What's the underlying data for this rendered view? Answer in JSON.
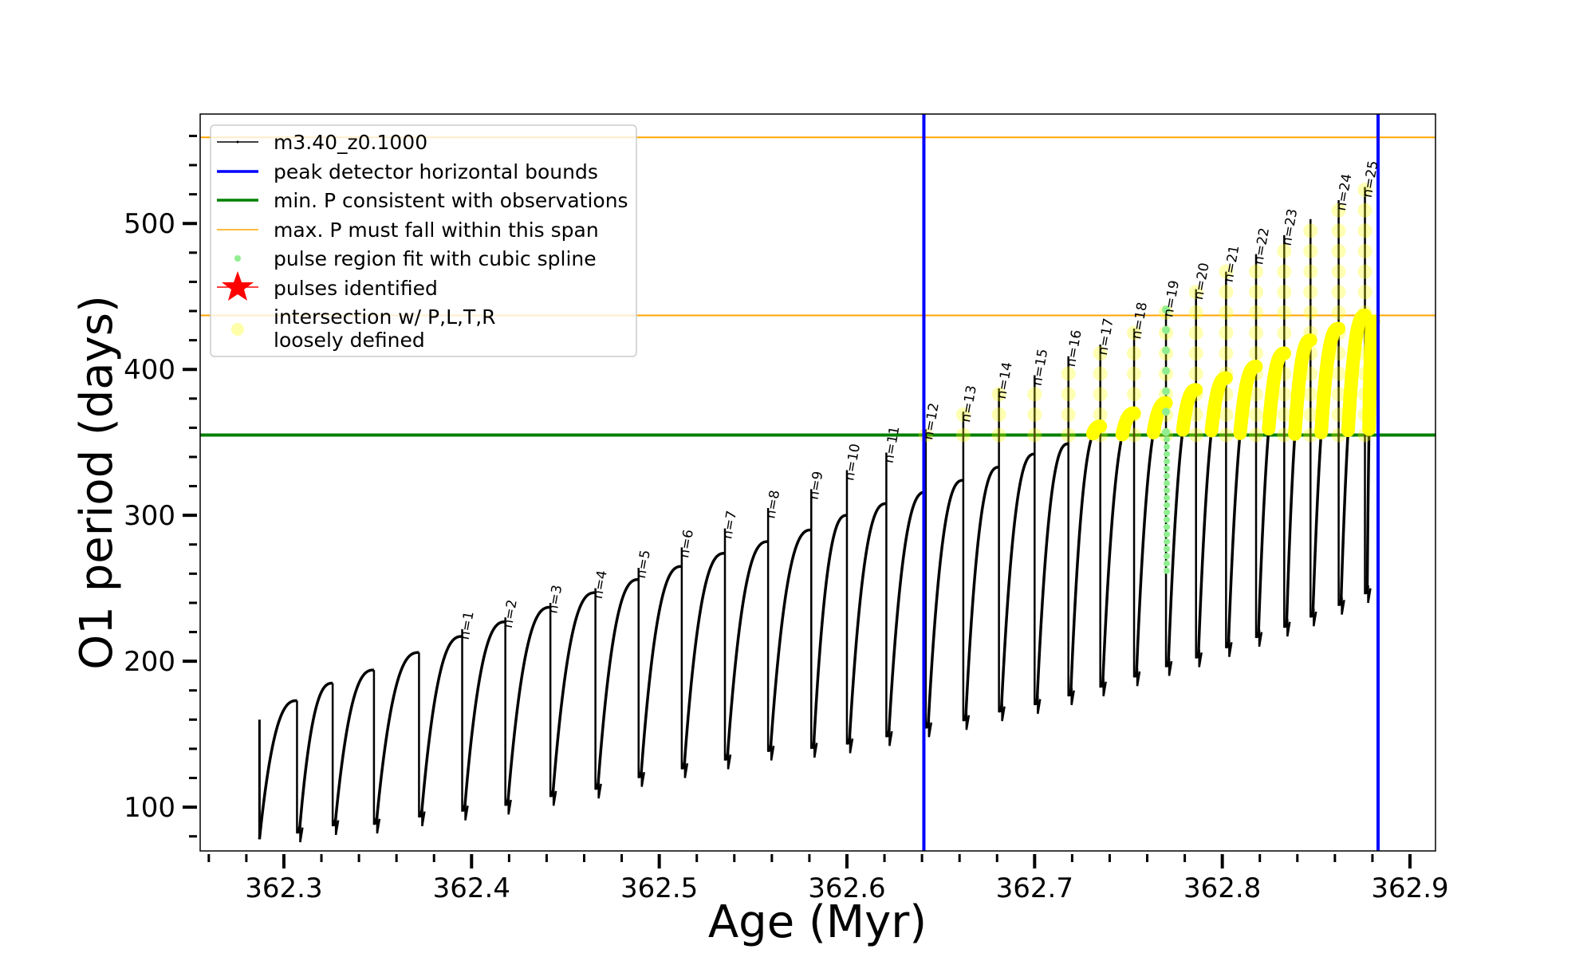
{
  "chart_data": {
    "type": "line",
    "title": "",
    "xlabel": "Age (Myr)",
    "ylabel": "O1 period (days)",
    "xlim": [
      362.2554,
      362.9136
    ],
    "ylim": [
      70,
      575
    ],
    "xticks": [
      362.3,
      362.4,
      362.5,
      362.6,
      362.7,
      362.8,
      362.9
    ],
    "xtick_labels": [
      "362.3",
      "362.4",
      "362.5",
      "362.6",
      "362.7",
      "362.8",
      "362.9"
    ],
    "xminor_step": 0.02,
    "yticks": [
      100,
      200,
      300,
      400,
      500
    ],
    "ytick_labels": [
      "100",
      "200",
      "300",
      "400",
      "500"
    ],
    "yminor_step": 20,
    "grid": false,
    "legend": {
      "placement": "upper-left",
      "entries": [
        {
          "label": "m3.40_z0.1000",
          "marker": "line-dot",
          "color": "#000000"
        },
        {
          "label": "peak detector horizontal bounds",
          "marker": "line",
          "color": "#0000ff"
        },
        {
          "label": "min. P consistent with observations",
          "marker": "line",
          "color": "#008000"
        },
        {
          "label": "max. P must fall within this span",
          "marker": "thin-line",
          "color": "#ffa500"
        },
        {
          "label": "pulse region fit with cubic spline",
          "marker": "dot",
          "color": "#90ee90"
        },
        {
          "label": "pulses identified",
          "marker": "star",
          "color": "#ff0000"
        },
        {
          "label": "intersection w/ P,L,T,R",
          "label2": "loosely defined",
          "marker": "circle",
          "color": "#ffffaa"
        }
      ]
    },
    "vlines": [
      {
        "value": 362.641,
        "color": "#0000ff",
        "series": "peak detector horizontal bounds"
      },
      {
        "value": 362.883,
        "color": "#0000ff",
        "series": "peak detector horizontal bounds"
      }
    ],
    "hlines": [
      {
        "value": 355,
        "color": "#008000",
        "series": "min. P consistent with observations"
      },
      {
        "value": 559,
        "color": "#ffa500",
        "series": "max. P must fall within this span"
      },
      {
        "value": 437,
        "color": "#ffa500",
        "series": "max. P must fall within this span"
      }
    ],
    "series": {
      "name": "m3.40_z0.1000",
      "color": "#000000",
      "start": {
        "age": 362.287,
        "value": 160,
        "min": 78
      },
      "cycles": [
        {
          "age": 362.307,
          "peak": 173,
          "spike": null,
          "min": 82,
          "label": null
        },
        {
          "age": 362.326,
          "peak": 185,
          "spike": null,
          "min": 87,
          "label": null
        },
        {
          "age": 362.348,
          "peak": 194,
          "spike": null,
          "min": 88,
          "label": null
        },
        {
          "age": 362.372,
          "peak": 206,
          "spike": null,
          "min": 93,
          "label": null
        },
        {
          "age": 362.395,
          "peak": 217,
          "spike": 222,
          "min": 97,
          "label": "n=1"
        },
        {
          "age": 362.418,
          "peak": 227,
          "spike": 230,
          "min": 101,
          "label": "n=2"
        },
        {
          "age": 362.442,
          "peak": 237,
          "spike": 240,
          "min": 107,
          "label": "n=3"
        },
        {
          "age": 362.466,
          "peak": 247,
          "spike": 250,
          "min": 112,
          "label": "n=4"
        },
        {
          "age": 362.489,
          "peak": 256,
          "spike": 264,
          "min": 120,
          "label": "n=5"
        },
        {
          "age": 362.512,
          "peak": 265,
          "spike": 278,
          "min": 126,
          "label": "n=6"
        },
        {
          "age": 362.535,
          "peak": 274,
          "spike": 291,
          "min": 132,
          "label": "n=7"
        },
        {
          "age": 362.558,
          "peak": 282,
          "spike": 305,
          "min": 138,
          "label": "n=8"
        },
        {
          "age": 362.581,
          "peak": 290,
          "spike": 318,
          "min": 140,
          "label": "n=9"
        },
        {
          "age": 362.6,
          "peak": 300,
          "spike": 331,
          "min": 143,
          "label": "n=10"
        },
        {
          "age": 362.621,
          "peak": 308,
          "spike": 343,
          "min": 148,
          "label": "n=11"
        },
        {
          "age": 362.642,
          "peak": 316,
          "spike": 359,
          "min": 154,
          "label": "n=12"
        },
        {
          "age": 362.662,
          "peak": 324,
          "spike": 371,
          "min": 159,
          "label": "n=13"
        },
        {
          "age": 362.681,
          "peak": 333,
          "spike": 387,
          "min": 165,
          "label": "n=14"
        },
        {
          "age": 362.7,
          "peak": 342,
          "spike": 396,
          "min": 170,
          "label": "n=15"
        },
        {
          "age": 362.718,
          "peak": 349,
          "spike": 409,
          "min": 176,
          "label": "n=16"
        },
        {
          "age": 362.735,
          "peak": 361,
          "spike": 417,
          "min": 182,
          "label": "n=17"
        },
        {
          "age": 362.753,
          "peak": 370,
          "spike": 428,
          "min": 189,
          "label": "n=18"
        },
        {
          "age": 362.77,
          "peak": 377,
          "spike": 443,
          "min": 196,
          "label": "n=19"
        },
        {
          "age": 362.786,
          "peak": 386,
          "spike": 455,
          "min": 202,
          "label": "n=20"
        },
        {
          "age": 362.802,
          "peak": 394,
          "spike": 467,
          "min": 209,
          "label": "n=21"
        },
        {
          "age": 362.818,
          "peak": 402,
          "spike": 479,
          "min": 216,
          "label": "n=22"
        },
        {
          "age": 362.833,
          "peak": 411,
          "spike": 492,
          "min": 223,
          "label": "n=23"
        },
        {
          "age": 362.847,
          "peak": 420,
          "spike": 503,
          "min": 230,
          "label": null
        },
        {
          "age": 362.862,
          "peak": 428,
          "spike": 516,
          "min": 238,
          "label": "n=24"
        },
        {
          "age": 362.876,
          "peak": 437,
          "spike": 525,
          "min": 246,
          "label": "n=25"
        }
      ],
      "end": {
        "age": 362.8805,
        "value": 433
      }
    },
    "intersection_threshold": 355,
    "intersection_color": "#ffff00",
    "spline_fit_region": {
      "label": "n=19",
      "age": 362.77,
      "range": [
        262,
        445
      ],
      "color": "#90ee90"
    }
  }
}
